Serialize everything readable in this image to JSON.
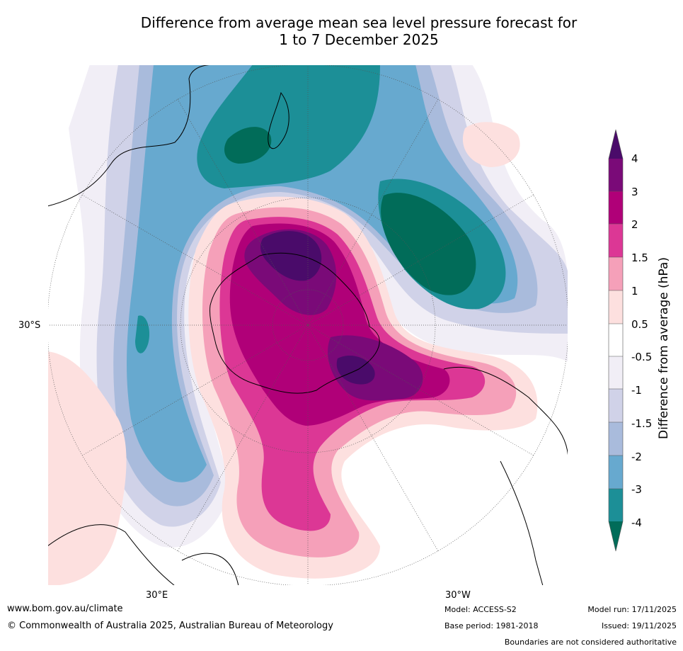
{
  "title": {
    "line1": "Difference from average mean sea level pressure forecast for",
    "line2": "1 to 7 December 2025"
  },
  "map": {
    "lat_label": "30°S",
    "lon_labels": [
      "30°E",
      "30°W"
    ]
  },
  "colorbar": {
    "title": "Difference from average (hPa)",
    "ticks": [
      "4",
      "3",
      "2",
      "1.5",
      "1",
      "0.5",
      "-0.5",
      "-1",
      "-1.5",
      "-2",
      "-3",
      "-4"
    ],
    "colors": {
      "gt4": "#4a0b6a",
      "c3_4": "#7a0a78",
      "c2_3": "#b00078",
      "c15_2": "#dc3795",
      "c1_15": "#f5a0b9",
      "c05_1": "#fde0df",
      "neutral": "#ffffff",
      "cm1_m05": "#f1eef6",
      "cm15_m1": "#d0d2e8",
      "cm2_m15": "#a9bbdc",
      "cm3_m2": "#67a9cf",
      "cm4_m3": "#1c8f97",
      "lt_m4": "#016c59"
    }
  },
  "footer": {
    "website": "www.bom.gov.au/climate",
    "copyright": "© Commonwealth of Australia 2025, Australian Bureau of Meteorology",
    "model": "Model: ACCESS-S2",
    "base_period": "Base period: 1981-2018",
    "model_run": "Model run: 17/11/2025",
    "issued": "Issued: 19/11/2025",
    "disclaimer": "Boundaries are not considered authoritative"
  }
}
